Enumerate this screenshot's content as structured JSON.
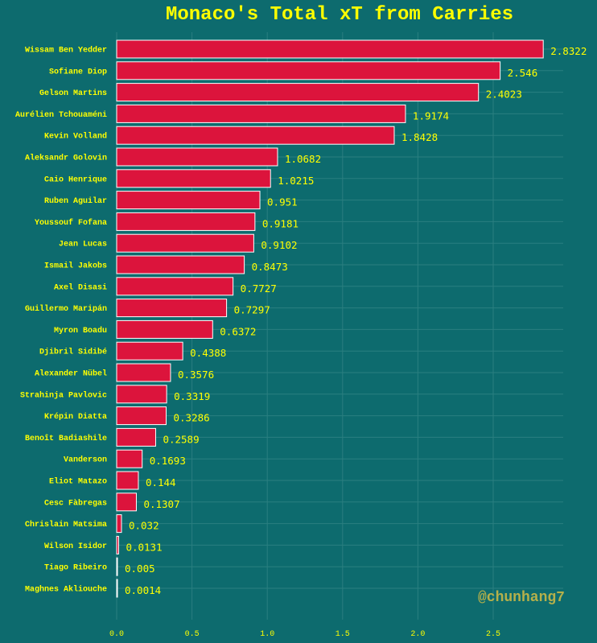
{
  "colors": {
    "background": "#0d6b6e",
    "bar": "#dc143c",
    "bar_edge": "#ffffff",
    "text": "#ffff00",
    "watermark": "#b5b04a",
    "grid": "#2a7f80"
  },
  "watermark": "@chunhang7",
  "chart_data": {
    "type": "bar",
    "orientation": "horizontal",
    "title": "Monaco's Total xT from Carries",
    "xlabel": "",
    "ylabel": "",
    "xlim": [
      0,
      2.95
    ],
    "xticks": [
      0.0,
      0.5,
      1.0,
      1.5,
      2.0,
      2.5
    ],
    "xtick_labels": [
      "0.0",
      "0.5",
      "1.0",
      "1.5",
      "2.0",
      "2.5"
    ],
    "grid": true,
    "categories": [
      "Wissam Ben Yedder",
      "Sofiane Diop",
      "Gelson Martins",
      "Aurélien Tchouaméni",
      "Kevin Volland",
      "Aleksandr Golovin",
      "Caio Henrique",
      "Ruben Aguilar",
      "Youssouf Fofana",
      "Jean Lucas",
      "Ismail Jakobs",
      "Axel Disasi",
      "Guillermo Maripán",
      "Myron Boadu",
      "Djibril Sidibé",
      "Alexander Nübel",
      "Strahinja Pavlovic",
      "Krépin Diatta",
      "Benoît Badiashile",
      "Vanderson",
      "Eliot Matazo",
      "Cesc Fàbregas",
      "Chrislain Matsima",
      "Wilson Isidor",
      "Tiago Ribeiro",
      "Maghnes Akliouche"
    ],
    "values": [
      2.8322,
      2.546,
      2.4023,
      1.9174,
      1.8428,
      1.0682,
      1.0215,
      0.951,
      0.9181,
      0.9102,
      0.8473,
      0.7727,
      0.7297,
      0.6372,
      0.4388,
      0.3576,
      0.3319,
      0.3286,
      0.2589,
      0.1693,
      0.144,
      0.1307,
      0.032,
      0.0131,
      0.005,
      0.0014
    ],
    "value_labels": [
      "2.8322",
      "2.546",
      "2.4023",
      "1.9174",
      "1.8428",
      "1.0682",
      "1.0215",
      "0.951",
      "0.9181",
      "0.9102",
      "0.8473",
      "0.7727",
      "0.7297",
      "0.6372",
      "0.4388",
      "0.3576",
      "0.3319",
      "0.3286",
      "0.2589",
      "0.1693",
      "0.144",
      "0.1307",
      "0.032",
      "0.0131",
      "0.005",
      "0.0014"
    ]
  }
}
